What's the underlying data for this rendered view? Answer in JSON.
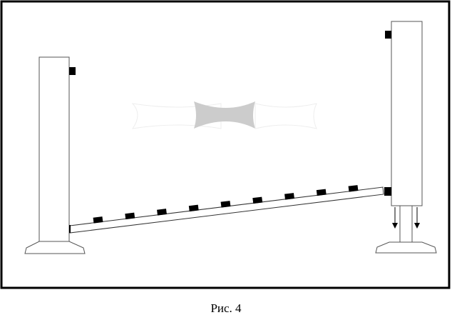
{
  "figure": {
    "caption": "Рис. 4",
    "colors": {
      "line": "#000000",
      "ghost_shape": "#cccccc",
      "background": "#ffffff"
    },
    "beam_markers_count": 9
  }
}
